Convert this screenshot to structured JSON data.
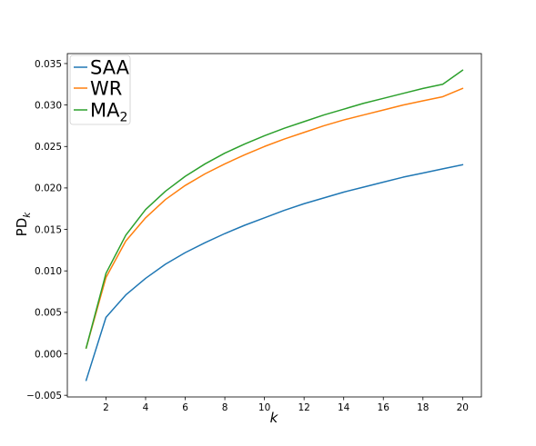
{
  "chart_data": {
    "type": "line",
    "xlabel": "k",
    "ylabel": "PD",
    "ylabel_subscript": "k",
    "xlim": [
      0.05,
      20.95
    ],
    "ylim": [
      -0.0052,
      0.0362
    ],
    "xticks": [
      2,
      4,
      6,
      8,
      10,
      12,
      14,
      16,
      18,
      20
    ],
    "xtick_labels": [
      "2",
      "4",
      "6",
      "8",
      "10",
      "12",
      "14",
      "16",
      "18",
      "20"
    ],
    "yticks": [
      -0.005,
      0.0,
      0.005,
      0.01,
      0.015,
      0.02,
      0.025,
      0.03,
      0.035
    ],
    "ytick_labels": [
      "−0.005",
      "0.000",
      "0.005",
      "0.010",
      "0.015",
      "0.020",
      "0.025",
      "0.030",
      "0.035"
    ],
    "grid": false,
    "legend_position": "top-left",
    "x": [
      1,
      2,
      3,
      4,
      5,
      6,
      7,
      8,
      9,
      10,
      11,
      12,
      13,
      14,
      15,
      16,
      17,
      18,
      19,
      20
    ],
    "series": [
      {
        "name": "SAA",
        "color": "#1f77b4",
        "values": [
          -0.0032,
          0.0044,
          0.0071,
          0.0091,
          0.0108,
          0.0122,
          0.0134,
          0.0145,
          0.0155,
          0.0164,
          0.0173,
          0.0181,
          0.0188,
          0.0195,
          0.0201,
          0.0207,
          0.0213,
          0.0218,
          0.0223,
          0.0228
        ]
      },
      {
        "name": "WR",
        "color": "#ff7f0e",
        "values": [
          0.0007,
          0.0092,
          0.0136,
          0.0164,
          0.0186,
          0.0203,
          0.0217,
          0.0229,
          0.024,
          0.025,
          0.0259,
          0.0267,
          0.0275,
          0.0282,
          0.0288,
          0.0294,
          0.03,
          0.0305,
          0.031,
          0.032
        ]
      },
      {
        "name": "MA",
        "name_subscript": "2",
        "color": "#2ca02c",
        "values": [
          0.0007,
          0.0097,
          0.0143,
          0.0174,
          0.0196,
          0.0214,
          0.0229,
          0.0242,
          0.0253,
          0.0263,
          0.0272,
          0.028,
          0.0288,
          0.0295,
          0.0302,
          0.0308,
          0.0314,
          0.032,
          0.0325,
          0.0342
        ]
      }
    ]
  }
}
